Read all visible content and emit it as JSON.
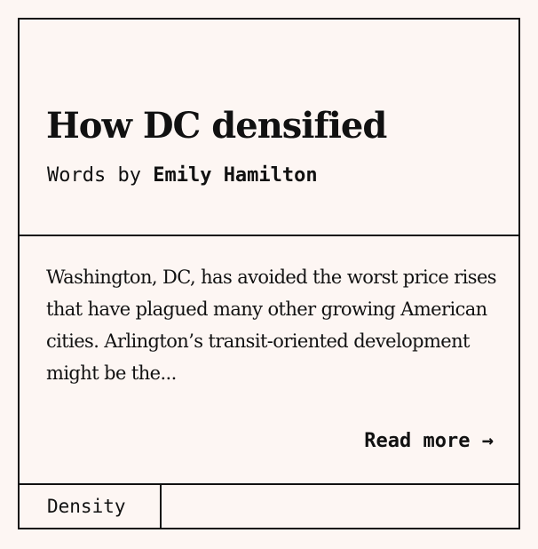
{
  "article": {
    "title": "How DC densified",
    "byline_prefix": "Words by ",
    "author": "Emily Hamilton",
    "excerpt": "Washington, DC, has avoided the worst price rises that have plagued many other growing American cities. Arlington’s transit-oriented development might be the...",
    "read_more_label": "Read more",
    "read_more_icon": "arrow-right-icon",
    "tag": "Density"
  }
}
